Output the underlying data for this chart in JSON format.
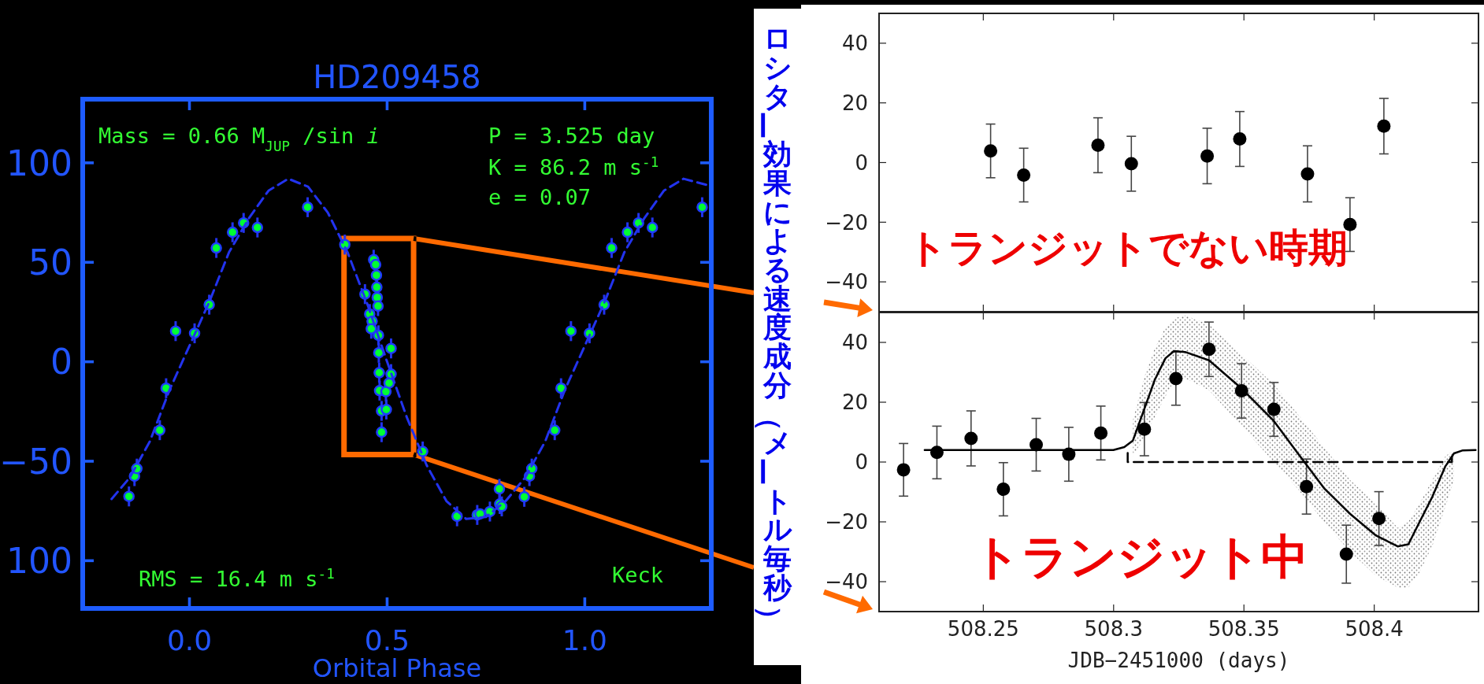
{
  "chart_data": [
    {
      "type": "scatter",
      "title": "HD209458",
      "xlabel": "Orbital Phase",
      "xlim": [
        -0.27,
        1.32
      ],
      "ylim": [
        -124,
        132
      ],
      "xticks": [
        {
          "value": 0,
          "label": "0.0"
        },
        {
          "value": 0.5,
          "label": "0.5"
        },
        {
          "value": 1,
          "label": "1.0"
        }
      ],
      "yticks": [
        100,
        50,
        0,
        {
          "value": -50,
          "label": "−50"
        },
        {
          "value": -100,
          "label": "100"
        }
      ],
      "annotations": [
        "Mass = 0.66 M$_{JUP}$ /sin *i*",
        "P = 3.525 day",
        "K = 86.2 m s$^{-1}$",
        "e = 0.07",
        "RMS = 16.4 m s$^{-1}$",
        "Keck"
      ],
      "series": [
        {
          "type": "scatter",
          "marker": "circle",
          "color": "#00ff33",
          "x": [
            -0.153,
            -0.139,
            -0.133,
            -0.075,
            -0.059,
            -0.035,
            0.013,
            0.05,
            0.068,
            0.109,
            0.137,
            0.172,
            0.299,
            0.393,
            0.444,
            0.456,
            0.462,
            0.46,
            0.466,
            0.471,
            0.473,
            0.474,
            0.475,
            0.477,
            0.478,
            0.479,
            0.48,
            0.481,
            0.497,
            0.486,
            0.498,
            0.486,
            0.51,
            0.51,
            0.505,
            0.59,
            0.677,
            0.728,
            0.735,
            0.76,
            0.785,
            0.79,
            0.784,
            0.847,
            0.86,
            0.866,
            0.924,
            0.94,
            0.965,
            1.012,
            1.049,
            1.068,
            1.108,
            1.136,
            1.171,
            1.297
          ],
          "values": [
            -67.7,
            -57.5,
            -53.7,
            -34.4,
            -13.3,
            15.4,
            14.3,
            28.7,
            57.2,
            65.1,
            69.8,
            67.5,
            77.7,
            58.9,
            34.0,
            24.0,
            20.4,
            16.6,
            51.3,
            48.9,
            43.5,
            37.5,
            32.3,
            28.0,
            13.3,
            4.5,
            -5.5,
            -14.5,
            -15.0,
            -24.7,
            -24.0,
            -35.4,
            6.7,
            -6.2,
            -10.7,
            -45.1,
            -77.7,
            -77.0,
            -76.5,
            -75.3,
            -71.5,
            -72.7,
            -63.9,
            -67.9,
            -57.5,
            -53.7,
            -34.4,
            -13.3,
            15.4,
            14.3,
            28.7,
            57.2,
            65.1,
            69.8,
            67.5,
            77.7
          ],
          "errors": [
            5,
            5,
            5,
            5,
            5,
            5,
            5,
            5,
            5,
            5,
            5,
            5,
            5,
            5,
            5,
            5,
            5,
            5,
            5,
            5,
            5,
            5,
            null,
            5,
            5,
            5,
            5,
            5,
            5,
            5,
            5,
            5,
            5,
            5,
            5,
            5,
            5,
            5,
            null,
            5,
            5,
            5,
            5,
            5,
            5,
            5,
            5,
            5,
            5,
            5,
            5,
            5,
            5,
            5,
            5,
            5
          ]
        },
        {
          "type": "line",
          "line_style": "dashed",
          "color": "#2233ee",
          "x": [
            -0.197,
            -0.15,
            -0.1,
            -0.05,
            0,
            0.05,
            0.1,
            0.15,
            0.2,
            0.25,
            0.3,
            0.35,
            0.4,
            0.45,
            0.5,
            0.55,
            0.6,
            0.65,
            0.7,
            0.75,
            0.8,
            0.85,
            0.9,
            0.95,
            1.0,
            1.05,
            1.1,
            1.15,
            1.2,
            1.25,
            1.307
          ],
          "values": [
            -69,
            -58,
            -40,
            -14,
            8,
            30,
            55,
            72,
            86,
            92,
            88,
            75,
            55,
            29,
            0,
            -28,
            -52,
            -70,
            -79,
            -78,
            -70,
            -58,
            -40,
            -14,
            8,
            30,
            55,
            72,
            86,
            92,
            89
          ]
        }
      ]
    },
    {
      "type": "scatter",
      "ylabel": "ロシター効果による速度成分（メートル毎秒）",
      "tick_labels": "y",
      "xlim": [
        508.21,
        508.44
      ],
      "ylim": [
        -50,
        50
      ],
      "xticks": [
        508.25,
        508.3,
        508.35,
        508.4
      ],
      "yticks": [
        40,
        20,
        0,
        {
          "value": -20,
          "label": "−20"
        },
        {
          "value": -40,
          "label": "−40"
        }
      ],
      "annotations": [
        "トランジットでない時期"
      ],
      "series": [
        {
          "type": "scatter",
          "marker": "circle",
          "color": "#000000",
          "x": [
            508.2528,
            508.2655,
            508.294,
            508.3068,
            508.3359,
            508.3484,
            508.3744,
            508.3907,
            508.4037
          ],
          "values": [
            3.9,
            -4.2,
            5.8,
            -0.4,
            2.2,
            7.9,
            -3.8,
            -20.8,
            12.2
          ],
          "errors": [
            9,
            9,
            9.2,
            9.2,
            9.3,
            9.2,
            9.4,
            9,
            9.3
          ]
        }
      ]
    },
    {
      "type": "scatter",
      "xlabel": "JDB−2451000 (days)",
      "xlim": [
        508.21,
        508.44
      ],
      "ylim": [
        -50,
        50
      ],
      "xticks": [
        508.25,
        508.3,
        508.35,
        508.4
      ],
      "yticks": [
        40,
        20,
        0,
        {
          "value": -20,
          "label": "−20"
        },
        {
          "value": -40,
          "label": "−40"
        }
      ],
      "annotations": [
        "トランジット中"
      ],
      "series": [
        {
          "type": "scatter",
          "marker": "circle",
          "color": "#000000",
          "x": [
            508.2194,
            508.2322,
            508.2453,
            508.2577,
            508.2703,
            508.2828,
            508.2951,
            508.3118,
            508.3239,
            508.3366,
            508.3491,
            508.3615,
            508.374,
            508.3893,
            508.4018
          ],
          "values": [
            -2.6,
            3.2,
            7.9,
            -9.1,
            5.8,
            2.6,
            9.7,
            11.0,
            27.9,
            37.7,
            23.8,
            17.6,
            -8.2,
            -30.8,
            -18.9
          ],
          "errors": [
            8.8,
            8.8,
            9.2,
            8.9,
            8.8,
            9.0,
            9.0,
            8.9,
            8.9,
            9.1,
            9.1,
            9.0,
            9.2,
            9.7,
            9.0
          ]
        },
        {
          "type": "line",
          "line_style": "solid",
          "color": "#000000",
          "x": [
            508.2275,
            508.2999,
            508.3041,
            508.3074,
            508.3116,
            508.3158,
            508.3199,
            508.3232,
            508.3274,
            508.3366,
            508.3491,
            508.3615,
            508.3707,
            508.3807,
            508.3907,
            508.4007,
            508.409,
            508.4131,
            508.4173,
            508.4223,
            508.4273,
            508.4306,
            508.434,
            508.4389
          ],
          "values": [
            4,
            4,
            5,
            7.2,
            17.3,
            27.5,
            34.7,
            37.1,
            36.8,
            34,
            24.6,
            13.7,
            2.9,
            -8.7,
            -17.3,
            -24.6,
            -28.2,
            -27.5,
            -20.2,
            -11.6,
            -1.4,
            2.9,
            3.9,
            4
          ],
          "lower": [
            null,
            null,
            null,
            2,
            8,
            15,
            22,
            27,
            28,
            24,
            12,
            0,
            -9,
            -20,
            -30,
            -38,
            -42,
            -42,
            -37,
            -28,
            -15,
            -6,
            null,
            null
          ],
          "upper": [
            null,
            null,
            null,
            14,
            28,
            38,
            45,
            48,
            49,
            46,
            36,
            26,
            16,
            5,
            -6,
            -14,
            -22,
            -20,
            -14,
            -6,
            2,
            4,
            null,
            null
          ]
        },
        {
          "type": "line",
          "line_style": "dashed",
          "color": "#000000",
          "x": [
            508.3054,
            508.3054,
            508.4298,
            508.4298
          ],
          "values": [
            3,
            0,
            0,
            3
          ]
        }
      ]
    }
  ]
}
